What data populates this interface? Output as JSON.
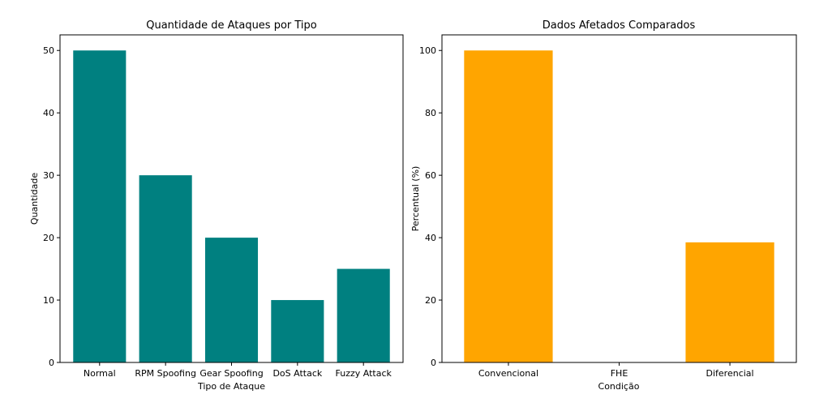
{
  "chart_data": [
    {
      "type": "bar",
      "title": "Quantidade de Ataques por Tipo",
      "xlabel": "Tipo de Ataque",
      "ylabel": "Quantidade",
      "categories": [
        "Normal",
        "RPM Spoofing",
        "Gear Spoofing",
        "DoS Attack",
        "Fuzzy Attack"
      ],
      "values": [
        50,
        30,
        20,
        10,
        15
      ],
      "ylim": [
        0,
        52.5
      ],
      "yticks": [
        0,
        10,
        20,
        30,
        40,
        50
      ],
      "color": "#008080",
      "grid": false
    },
    {
      "type": "bar",
      "title": "Dados Afetados Comparados",
      "xlabel": "Condição",
      "ylabel": "Percentual (%)",
      "categories": [
        "Convencional",
        "FHE",
        "Diferencial"
      ],
      "values": [
        100,
        0,
        38.5
      ],
      "ylim": [
        0,
        105
      ],
      "yticks": [
        0,
        20,
        40,
        60,
        80,
        100
      ],
      "color": "#FFA500",
      "grid": false
    }
  ]
}
